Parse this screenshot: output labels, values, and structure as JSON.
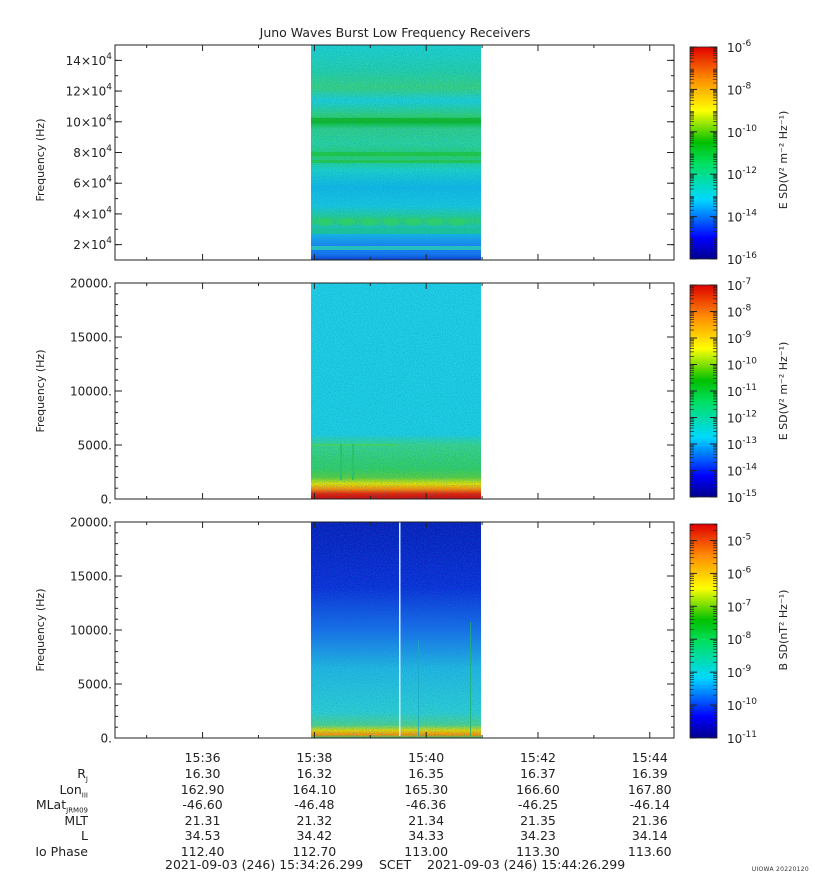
{
  "chart_data": [
    {
      "type": "heatmap",
      "title": "Juno Waves Burst Low Frequency Receivers",
      "ylabel": "Frequency (Hz)",
      "ylim": [
        10000,
        150000
      ],
      "yticks": [
        {
          "value": 20000,
          "mant": "2×10",
          "exp": "4"
        },
        {
          "value": 40000,
          "mant": "4×10",
          "exp": "4"
        },
        {
          "value": 60000,
          "mant": "6×10",
          "exp": "4"
        },
        {
          "value": 80000,
          "mant": "8×10",
          "exp": "4"
        },
        {
          "value": 100000,
          "mant": "10×10",
          "exp": "4"
        },
        {
          "value": 120000,
          "mant": "12×10",
          "exp": "4"
        },
        {
          "value": 140000,
          "mant": "14×10",
          "exp": "4"
        }
      ],
      "data_time_range": [
        "15:37:53",
        "15:40:45"
      ],
      "colorbar": {
        "label": "E SD(V² m⁻² Hz⁻¹)",
        "scale": "log",
        "range_exp": [
          -16,
          -6
        ],
        "ticks": [
          -6,
          -8,
          -10,
          -12,
          -14,
          -16
        ]
      }
    },
    {
      "type": "heatmap",
      "ylabel": "Frequency (Hz)",
      "ylim": [
        0,
        20000
      ],
      "yticks": [
        {
          "value": 0,
          "label": "0."
        },
        {
          "value": 5000,
          "label": "5000."
        },
        {
          "value": 10000,
          "label": "10000."
        },
        {
          "value": 15000,
          "label": "15000."
        },
        {
          "value": 20000,
          "label": "20000."
        }
      ],
      "data_time_range": [
        "15:37:53",
        "15:40:45"
      ],
      "colorbar": {
        "label": "E SD(V² m⁻² Hz⁻¹)",
        "scale": "log",
        "range_exp": [
          -15,
          -7
        ],
        "ticks": [
          -7,
          -8,
          -9,
          -10,
          -11,
          -12,
          -13,
          -14,
          -15
        ]
      }
    },
    {
      "type": "heatmap",
      "ylabel": "Frequency (Hz)",
      "ylim": [
        0,
        20000
      ],
      "yticks": [
        {
          "value": 0,
          "label": "0."
        },
        {
          "value": 5000,
          "label": "5000."
        },
        {
          "value": 10000,
          "label": "10000."
        },
        {
          "value": 15000,
          "label": "15000."
        },
        {
          "value": 20000,
          "label": "20000."
        }
      ],
      "data_time_range": [
        "15:37:53",
        "15:40:45"
      ],
      "colorbar": {
        "label": "B SD(nT² Hz⁻¹)",
        "scale": "log",
        "range_exp": [
          -11,
          -4.5
        ],
        "ticks": [
          -5,
          -6,
          -7,
          -8,
          -9,
          -10,
          -11
        ]
      }
    }
  ],
  "time_axis": {
    "start": "15:34:26",
    "end": "15:44:26",
    "major_ticks": [
      "15:36",
      "15:38",
      "15:40",
      "15:42",
      "15:44"
    ]
  },
  "ephemeris": {
    "rows": [
      {
        "label": "R",
        "sub": "J",
        "values": [
          "16.30",
          "16.32",
          "16.35",
          "16.37",
          "16.39"
        ]
      },
      {
        "label": "Lon",
        "sub": "III",
        "values": [
          "162.90",
          "164.10",
          "165.30",
          "166.60",
          "167.80"
        ]
      },
      {
        "label": "MLat",
        "sub": "JRM09",
        "values": [
          "-46.60",
          "-46.48",
          "-46.36",
          "-46.25",
          "-46.14"
        ]
      },
      {
        "label": "MLT",
        "sub": "",
        "values": [
          "21.31",
          "21.32",
          "21.34",
          "21.35",
          "21.36"
        ]
      },
      {
        "label": "L",
        "sub": "",
        "values": [
          "34.53",
          "34.42",
          "34.33",
          "34.23",
          "34.14"
        ]
      },
      {
        "label": "Io Phase",
        "sub": "",
        "values": [
          "112.40",
          "112.70",
          "113.00",
          "113.30",
          "113.60"
        ]
      }
    ]
  },
  "scet": {
    "start": "2021-09-03 (246) 15:34:26.299",
    "label": "SCET",
    "end": "2021-09-03 (246) 15:44:26.299"
  },
  "credit": "UIOWA 20220120"
}
